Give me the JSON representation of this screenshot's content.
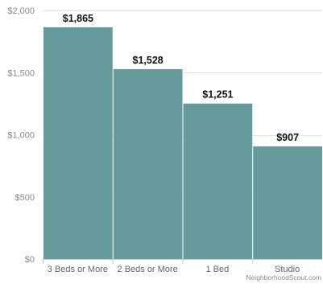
{
  "chart_data": {
    "type": "bar",
    "categories": [
      "3 Beds or More",
      "2 Beds or More",
      "1 Bed",
      "Studio"
    ],
    "values": [
      1865,
      1528,
      1251,
      907
    ],
    "data_labels": [
      "$1,865",
      "$1,528",
      "$1,251",
      "$907"
    ],
    "title": "",
    "xlabel": "",
    "ylabel": "",
    "ylim": [
      0,
      2000
    ],
    "yticks": [
      0,
      500,
      1000,
      1500,
      2000
    ],
    "ytick_labels": [
      "$0",
      "$500",
      "$1,000",
      "$1,500",
      "$2,000"
    ],
    "grid": true,
    "legend": "none",
    "bar_color": "#679b9b",
    "gridline_color": "#e3e3e3"
  },
  "credit": "NeighborhoodScout.com"
}
